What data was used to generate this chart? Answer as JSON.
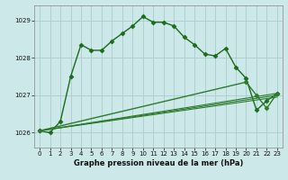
{
  "xlabel": "Graphe pression niveau de la mer (hPa)",
  "bg_color": "#cce8e8",
  "grid_color": "#aacccc",
  "ylim": [
    1025.6,
    1029.4
  ],
  "xlim": [
    -0.5,
    23.5
  ],
  "yticks": [
    1026,
    1027,
    1028,
    1029
  ],
  "xticks": [
    0,
    1,
    2,
    3,
    4,
    5,
    6,
    7,
    8,
    9,
    10,
    11,
    12,
    13,
    14,
    15,
    16,
    17,
    18,
    19,
    20,
    21,
    22,
    23
  ],
  "series": [
    {
      "x": [
        0,
        1,
        2,
        3,
        4,
        5,
        6,
        7,
        8,
        9,
        10,
        11,
        12,
        13,
        14,
        15,
        16,
        17,
        18,
        19,
        20,
        21,
        22,
        23
      ],
      "y": [
        1026.05,
        1026.0,
        1026.3,
        1027.5,
        1028.35,
        1028.2,
        1028.2,
        1028.45,
        1028.65,
        1028.85,
        1029.1,
        1028.95,
        1028.95,
        1028.85,
        1028.55,
        1028.35,
        1028.1,
        1028.05,
        1028.25,
        1027.75,
        1027.45,
        1026.6,
        1026.85,
        1027.05
      ],
      "marker": "D",
      "markersize": 2.5,
      "linewidth": 1.0,
      "color": "#1a6b1a"
    },
    {
      "x": [
        0,
        23
      ],
      "y": [
        1026.05,
        1026.95
      ],
      "marker": null,
      "markersize": 0,
      "linewidth": 0.8,
      "color": "#2d7a2d"
    },
    {
      "x": [
        0,
        23
      ],
      "y": [
        1026.05,
        1027.0
      ],
      "marker": null,
      "markersize": 0,
      "linewidth": 0.8,
      "color": "#2d7a2d"
    },
    {
      "x": [
        0,
        23
      ],
      "y": [
        1026.05,
        1027.05
      ],
      "marker": null,
      "markersize": 0,
      "linewidth": 0.8,
      "color": "#2d7a2d"
    },
    {
      "x": [
        0,
        20,
        21,
        22,
        23
      ],
      "y": [
        1026.05,
        1027.35,
        1027.0,
        1026.65,
        1027.05
      ],
      "marker": "D",
      "markersize": 2.5,
      "linewidth": 1.0,
      "color": "#2d7a2d"
    }
  ]
}
